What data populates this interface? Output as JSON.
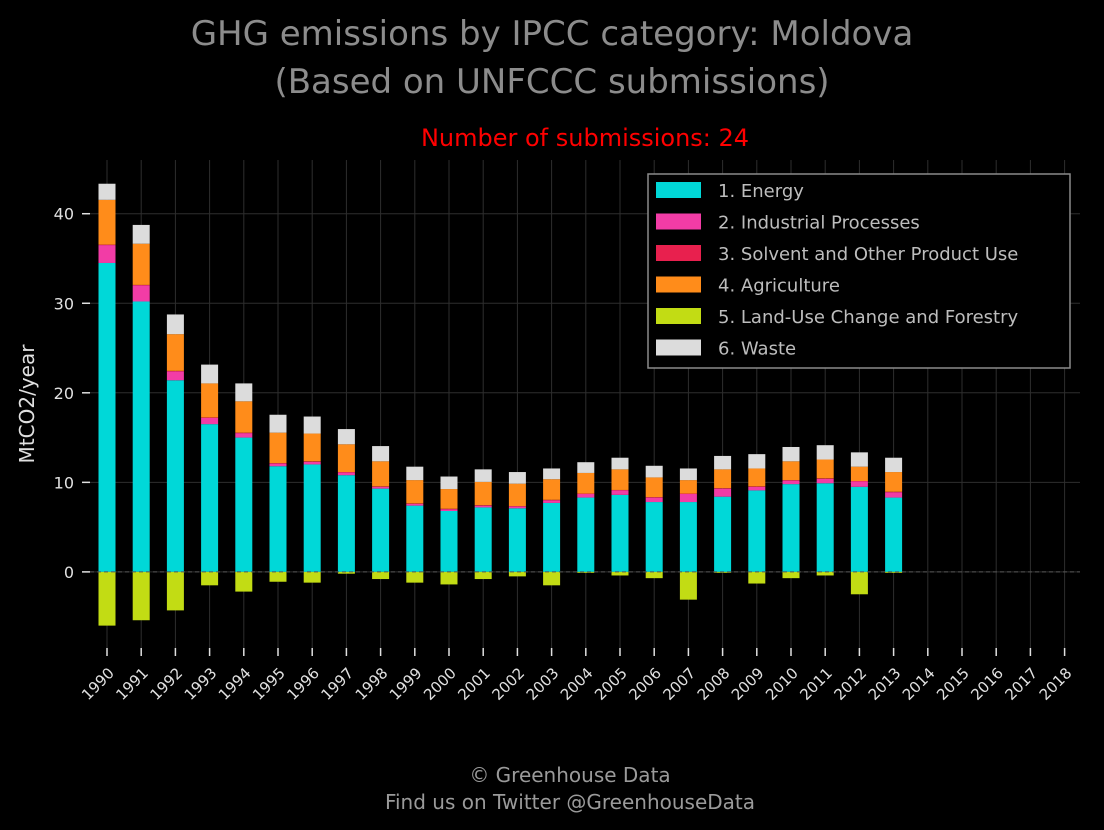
{
  "title_line1": "GHG emissions by IPCC category: Moldova",
  "title_line2": "(Based on UNFCCC submissions)",
  "subtitle": "Number of submissions: 24",
  "footer_line1": "© Greenhouse Data",
  "footer_line2": "Find us on Twitter @GreenhouseData",
  "chart_data": {
    "type": "bar",
    "stacked": true,
    "ylabel": "MtCO2/year",
    "ylim": [
      -8.5,
      46
    ],
    "yticks": [
      0,
      10,
      20,
      30,
      40
    ],
    "grid": true,
    "legend_position": "top-right",
    "categories": [
      "1990",
      "1991",
      "1992",
      "1993",
      "1994",
      "1995",
      "1996",
      "1997",
      "1998",
      "1999",
      "2000",
      "2001",
      "2002",
      "2003",
      "2004",
      "2005",
      "2006",
      "2007",
      "2008",
      "2009",
      "2010",
      "2011",
      "2012",
      "2013",
      "2014",
      "2015",
      "2016",
      "2017",
      "2018"
    ],
    "series": [
      {
        "name": "1. Energy",
        "color": "#00d8d8",
        "values": [
          34.5,
          30.2,
          21.4,
          16.5,
          15.0,
          11.8,
          12.0,
          10.8,
          9.3,
          7.4,
          6.8,
          7.2,
          7.1,
          7.7,
          8.3,
          8.6,
          7.8,
          7.8,
          8.4,
          9.1,
          9.8,
          9.9,
          9.5,
          8.3,
          null,
          null,
          null,
          null,
          null
        ]
      },
      {
        "name": "2. Industrial Processes",
        "color": "#f23ca6",
        "values": [
          2.0,
          1.8,
          1.0,
          0.7,
          0.5,
          0.3,
          0.3,
          0.3,
          0.2,
          0.2,
          0.2,
          0.2,
          0.2,
          0.3,
          0.4,
          0.5,
          0.5,
          0.9,
          0.9,
          0.4,
          0.4,
          0.5,
          0.6,
          0.6,
          null,
          null,
          null,
          null,
          null
        ]
      },
      {
        "name": "3. Solvent and Other Product Use",
        "color": "#e8204e",
        "values": [
          0.05,
          0.05,
          0.05,
          0.05,
          0.05,
          0.05,
          0.05,
          0.05,
          0.05,
          0.05,
          0.05,
          0.05,
          0.05,
          0.05,
          0.05,
          0.05,
          0.05,
          0.05,
          0.05,
          0.05,
          0.05,
          0.05,
          0.05,
          0.05,
          null,
          null,
          null,
          null,
          null
        ]
      },
      {
        "name": "4. Agriculture",
        "color": "#ff8c1a",
        "values": [
          5.0,
          4.6,
          4.1,
          3.8,
          3.5,
          3.4,
          3.1,
          3.1,
          2.8,
          2.6,
          2.2,
          2.6,
          2.5,
          2.3,
          2.3,
          2.3,
          2.2,
          1.5,
          2.1,
          2.0,
          2.1,
          2.1,
          1.6,
          2.2,
          null,
          null,
          null,
          null,
          null
        ]
      },
      {
        "name": "5. Land-Use Change and Forestry",
        "color": "#c2dc14",
        "values": [
          -6.0,
          -5.4,
          -4.3,
          -1.5,
          -2.2,
          -1.1,
          -1.2,
          -0.2,
          -0.8,
          -1.2,
          -1.4,
          -0.8,
          -0.5,
          -1.5,
          -0.1,
          -0.4,
          -0.7,
          -3.1,
          -0.1,
          -1.3,
          -0.7,
          -0.4,
          -2.5,
          -0.1,
          null,
          null,
          null,
          null,
          null
        ]
      },
      {
        "name": "6. Waste",
        "color": "#dcdcdc",
        "values": [
          1.8,
          2.1,
          2.2,
          2.1,
          2.0,
          2.0,
          1.9,
          1.7,
          1.7,
          1.5,
          1.4,
          1.4,
          1.3,
          1.2,
          1.2,
          1.3,
          1.3,
          1.3,
          1.5,
          1.6,
          1.6,
          1.6,
          1.6,
          1.6,
          null,
          null,
          null,
          null,
          null
        ]
      }
    ]
  }
}
